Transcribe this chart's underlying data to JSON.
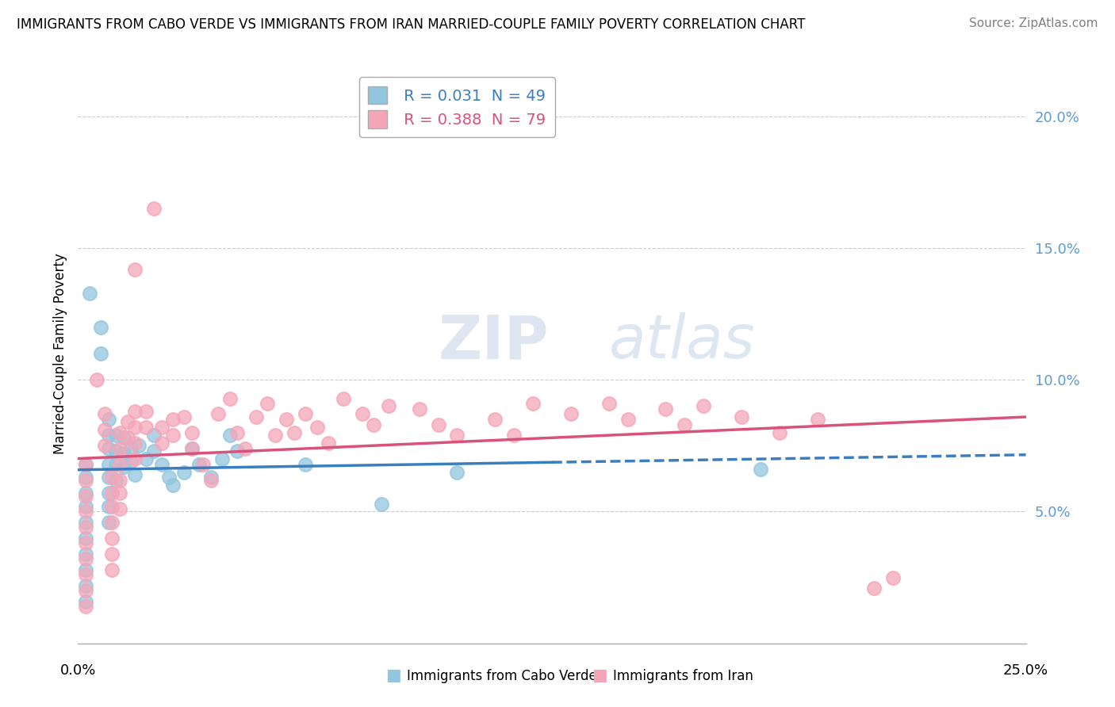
{
  "title": "IMMIGRANTS FROM CABO VERDE VS IMMIGRANTS FROM IRAN MARRIED-COUPLE FAMILY POVERTY CORRELATION CHART",
  "source": "Source: ZipAtlas.com",
  "ylabel": "Married-Couple Family Poverty",
  "xlim": [
    0.0,
    0.25
  ],
  "ylim": [
    0.0,
    0.22
  ],
  "yticks": [
    0.05,
    0.1,
    0.15,
    0.2
  ],
  "ytick_labels": [
    "5.0%",
    "10.0%",
    "15.0%",
    "20.0%"
  ],
  "cabo_verde_color": "#92c5de",
  "iran_color": "#f4a6b8",
  "cabo_verde_line_color": "#3a7ebf",
  "iran_line_color": "#d9527a",
  "cabo_verde_R": 0.031,
  "iran_R": 0.388,
  "cabo_verde_N": 49,
  "iran_N": 79,
  "cabo_verde_points": [
    [
      0.003,
      0.133
    ],
    [
      0.006,
      0.12
    ],
    [
      0.006,
      0.11
    ],
    [
      0.008,
      0.085
    ],
    [
      0.008,
      0.079
    ],
    [
      0.008,
      0.074
    ],
    [
      0.008,
      0.068
    ],
    [
      0.008,
      0.063
    ],
    [
      0.008,
      0.057
    ],
    [
      0.008,
      0.052
    ],
    [
      0.008,
      0.046
    ],
    [
      0.01,
      0.079
    ],
    [
      0.01,
      0.073
    ],
    [
      0.01,
      0.068
    ],
    [
      0.01,
      0.062
    ],
    [
      0.012,
      0.078
    ],
    [
      0.012,
      0.072
    ],
    [
      0.012,
      0.067
    ],
    [
      0.014,
      0.074
    ],
    [
      0.014,
      0.069
    ],
    [
      0.015,
      0.064
    ],
    [
      0.016,
      0.075
    ],
    [
      0.018,
      0.07
    ],
    [
      0.02,
      0.079
    ],
    [
      0.02,
      0.073
    ],
    [
      0.022,
      0.068
    ],
    [
      0.024,
      0.063
    ],
    [
      0.025,
      0.06
    ],
    [
      0.028,
      0.065
    ],
    [
      0.03,
      0.074
    ],
    [
      0.032,
      0.068
    ],
    [
      0.035,
      0.063
    ],
    [
      0.038,
      0.07
    ],
    [
      0.04,
      0.079
    ],
    [
      0.042,
      0.073
    ],
    [
      0.002,
      0.068
    ],
    [
      0.002,
      0.063
    ],
    [
      0.002,
      0.057
    ],
    [
      0.002,
      0.052
    ],
    [
      0.002,
      0.046
    ],
    [
      0.002,
      0.04
    ],
    [
      0.002,
      0.034
    ],
    [
      0.002,
      0.028
    ],
    [
      0.002,
      0.022
    ],
    [
      0.002,
      0.016
    ],
    [
      0.06,
      0.068
    ],
    [
      0.08,
      0.053
    ],
    [
      0.1,
      0.065
    ],
    [
      0.18,
      0.066
    ]
  ],
  "iran_points": [
    [
      0.002,
      0.068
    ],
    [
      0.002,
      0.062
    ],
    [
      0.002,
      0.056
    ],
    [
      0.002,
      0.05
    ],
    [
      0.002,
      0.044
    ],
    [
      0.002,
      0.038
    ],
    [
      0.002,
      0.032
    ],
    [
      0.002,
      0.026
    ],
    [
      0.002,
      0.02
    ],
    [
      0.002,
      0.014
    ],
    [
      0.005,
      0.1
    ],
    [
      0.007,
      0.087
    ],
    [
      0.007,
      0.081
    ],
    [
      0.007,
      0.075
    ],
    [
      0.009,
      0.063
    ],
    [
      0.009,
      0.057
    ],
    [
      0.009,
      0.052
    ],
    [
      0.009,
      0.046
    ],
    [
      0.009,
      0.04
    ],
    [
      0.009,
      0.034
    ],
    [
      0.009,
      0.028
    ],
    [
      0.011,
      0.08
    ],
    [
      0.011,
      0.074
    ],
    [
      0.011,
      0.068
    ],
    [
      0.011,
      0.062
    ],
    [
      0.011,
      0.057
    ],
    [
      0.011,
      0.051
    ],
    [
      0.013,
      0.084
    ],
    [
      0.013,
      0.078
    ],
    [
      0.015,
      0.142
    ],
    [
      0.015,
      0.088
    ],
    [
      0.015,
      0.082
    ],
    [
      0.015,
      0.076
    ],
    [
      0.015,
      0.07
    ],
    [
      0.018,
      0.088
    ],
    [
      0.018,
      0.082
    ],
    [
      0.02,
      0.165
    ],
    [
      0.022,
      0.082
    ],
    [
      0.022,
      0.076
    ],
    [
      0.025,
      0.085
    ],
    [
      0.025,
      0.079
    ],
    [
      0.028,
      0.086
    ],
    [
      0.03,
      0.08
    ],
    [
      0.03,
      0.074
    ],
    [
      0.033,
      0.068
    ],
    [
      0.035,
      0.062
    ],
    [
      0.037,
      0.087
    ],
    [
      0.04,
      0.093
    ],
    [
      0.042,
      0.08
    ],
    [
      0.044,
      0.074
    ],
    [
      0.047,
      0.086
    ],
    [
      0.05,
      0.091
    ],
    [
      0.052,
      0.079
    ],
    [
      0.055,
      0.085
    ],
    [
      0.057,
      0.08
    ],
    [
      0.06,
      0.087
    ],
    [
      0.063,
      0.082
    ],
    [
      0.066,
      0.076
    ],
    [
      0.07,
      0.093
    ],
    [
      0.075,
      0.087
    ],
    [
      0.078,
      0.083
    ],
    [
      0.082,
      0.09
    ],
    [
      0.09,
      0.089
    ],
    [
      0.095,
      0.083
    ],
    [
      0.1,
      0.079
    ],
    [
      0.11,
      0.085
    ],
    [
      0.115,
      0.079
    ],
    [
      0.12,
      0.091
    ],
    [
      0.13,
      0.087
    ],
    [
      0.14,
      0.091
    ],
    [
      0.145,
      0.085
    ],
    [
      0.155,
      0.089
    ],
    [
      0.16,
      0.083
    ],
    [
      0.165,
      0.09
    ],
    [
      0.175,
      0.086
    ],
    [
      0.185,
      0.08
    ],
    [
      0.195,
      0.085
    ],
    [
      0.21,
      0.021
    ],
    [
      0.215,
      0.025
    ]
  ]
}
